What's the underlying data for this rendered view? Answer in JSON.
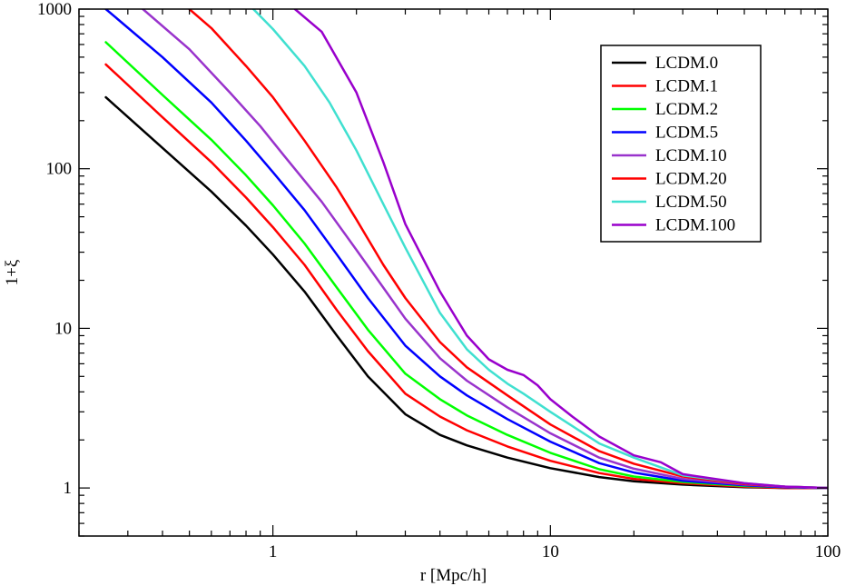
{
  "chart_data": {
    "type": "line",
    "title": "",
    "xlabel": "r [Mpc/h]",
    "ylabel": "1+ξ",
    "xscale": "log",
    "yscale": "log",
    "xlim": [
      0.2,
      100
    ],
    "ylim": [
      0.5,
      1000
    ],
    "grid": false,
    "legend_position": "top-right",
    "x_ticks": [
      {
        "value": 1,
        "label": "1"
      },
      {
        "value": 10,
        "label": "10"
      },
      {
        "value": 100,
        "label": "100"
      }
    ],
    "y_ticks": [
      {
        "value": 1,
        "label": "1"
      },
      {
        "value": 10,
        "label": "10"
      },
      {
        "value": 100,
        "label": "100"
      },
      {
        "value": 1000,
        "label": "1000"
      }
    ],
    "series": [
      {
        "name": "LCDM.0",
        "color": "#000000",
        "x": [
          0.25,
          0.4,
          0.6,
          0.8,
          1.0,
          1.3,
          1.7,
          2.2,
          3.0,
          4.0,
          5.0,
          7.0,
          10,
          15,
          20,
          30,
          50,
          70,
          100
        ],
        "y": [
          280,
          135,
          72,
          44,
          29,
          17,
          9.0,
          5.0,
          2.9,
          2.15,
          1.85,
          1.55,
          1.33,
          1.17,
          1.1,
          1.05,
          1.01,
          1.0,
          1.0
        ]
      },
      {
        "name": "LCDM.1",
        "color": "#ff0000",
        "x": [
          0.25,
          0.4,
          0.6,
          0.8,
          1.0,
          1.3,
          1.7,
          2.2,
          3.0,
          4.0,
          5.0,
          7.0,
          10,
          15,
          20,
          30,
          50,
          70,
          100
        ],
        "y": [
          450,
          210,
          110,
          66,
          43,
          25,
          13,
          7.2,
          3.9,
          2.8,
          2.3,
          1.82,
          1.48,
          1.24,
          1.14,
          1.07,
          1.02,
          1.0,
          1.0
        ]
      },
      {
        "name": "LCDM.2",
        "color": "#00ff00",
        "x": [
          0.25,
          0.4,
          0.6,
          0.8,
          1.0,
          1.3,
          1.7,
          2.2,
          3.0,
          4.0,
          5.0,
          7.0,
          10,
          15,
          20,
          30,
          50,
          70,
          100
        ],
        "y": [
          620,
          290,
          152,
          91,
          59,
          34,
          18,
          9.8,
          5.2,
          3.6,
          2.85,
          2.15,
          1.66,
          1.31,
          1.18,
          1.09,
          1.03,
          1.01,
          1.0
        ]
      },
      {
        "name": "LCDM.5",
        "color": "#0000ff",
        "x": [
          0.25,
          0.4,
          0.6,
          0.8,
          1.0,
          1.3,
          1.7,
          2.2,
          3.0,
          4.0,
          5.0,
          7.0,
          10,
          15,
          20,
          30,
          50,
          70,
          100
        ],
        "y": [
          1000,
          500,
          260,
          150,
          95,
          55,
          29,
          15.5,
          7.8,
          5.0,
          3.8,
          2.7,
          1.95,
          1.43,
          1.25,
          1.11,
          1.04,
          1.01,
          1.0
        ]
      },
      {
        "name": "LCDM.10",
        "color": "#9933cc",
        "x": [
          0.34,
          0.5,
          0.7,
          0.9,
          1.1,
          1.5,
          2.0,
          2.5,
          3.0,
          4.0,
          5.0,
          7.0,
          10,
          15,
          20,
          30,
          50,
          70,
          100
        ],
        "y": [
          1000,
          560,
          300,
          185,
          120,
          62,
          31,
          18,
          11.5,
          6.5,
          4.7,
          3.2,
          2.2,
          1.55,
          1.32,
          1.14,
          1.05,
          1.02,
          1.0
        ]
      },
      {
        "name": "LCDM.20",
        "color": "#ff0000",
        "x": [
          0.5,
          0.6,
          0.8,
          1.0,
          1.3,
          1.7,
          2.0,
          2.5,
          3.0,
          4.0,
          5.0,
          7.0,
          10,
          15,
          20,
          30,
          50,
          70,
          100
        ],
        "y": [
          1000,
          760,
          440,
          280,
          150,
          76,
          48,
          25,
          15.5,
          8.2,
          5.7,
          3.8,
          2.5,
          1.7,
          1.42,
          1.18,
          1.06,
          1.02,
          1.0
        ]
      },
      {
        "name": "LCDM.50",
        "color": "#40e0d0",
        "x": [
          0.85,
          1.0,
          1.3,
          1.6,
          2.0,
          2.5,
          3.0,
          4.0,
          5.0,
          6.0,
          7.0,
          8.0,
          10,
          15,
          20,
          30,
          50,
          70,
          100
        ],
        "y": [
          1000,
          750,
          440,
          260,
          130,
          60,
          32,
          12.5,
          7.4,
          5.5,
          4.5,
          3.9,
          3.0,
          1.9,
          1.55,
          1.2,
          1.07,
          1.02,
          1.0
        ]
      },
      {
        "name": "LCDM.100",
        "color": "#9900cc",
        "x": [
          1.2,
          1.5,
          2.0,
          2.5,
          3.0,
          4.0,
          5.0,
          6.0,
          7.0,
          8.0,
          9.0,
          10,
          12,
          15,
          20,
          25,
          30,
          50,
          70,
          100
        ],
        "y": [
          1000,
          720,
          300,
          110,
          45,
          17,
          9.0,
          6.4,
          5.5,
          5.1,
          4.4,
          3.6,
          2.8,
          2.1,
          1.6,
          1.45,
          1.22,
          1.07,
          1.02,
          1.0
        ]
      }
    ]
  }
}
